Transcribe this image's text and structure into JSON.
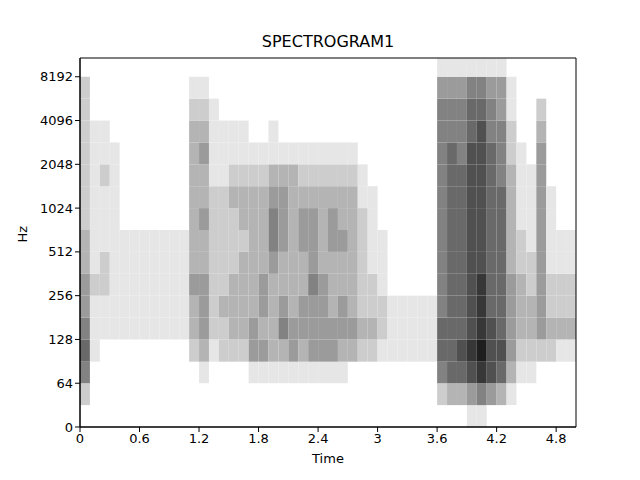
{
  "chart_data": {
    "type": "heatmap",
    "title": "SPECTROGRAM1",
    "x_label": "Time",
    "y_label": "Hz",
    "xlim": [
      0,
      5
    ],
    "xticks": [
      0,
      0.6,
      1.2,
      1.8,
      2.4,
      3,
      3.6,
      4.2,
      4.8
    ],
    "ylim": [
      0,
      11025
    ],
    "yticks": [
      0,
      64,
      128,
      256,
      512,
      1024,
      2048,
      4096,
      8192
    ],
    "log": "y",
    "grid": false,
    "zlim": [
      0,
      9
    ],
    "time_bins": [
      0,
      0.1,
      0.2,
      0.3,
      0.4,
      0.5,
      0.6,
      0.7,
      0.8,
      0.9,
      1,
      1.1,
      1.2,
      1.3,
      1.4,
      1.5,
      1.6,
      1.7,
      1.8,
      1.9,
      2,
      2.1,
      2.2,
      2.3,
      2.4,
      2.5,
      2.6,
      2.7,
      2.8,
      2.9,
      3,
      3.1,
      3.2,
      3.3,
      3.4,
      3.5,
      3.6,
      3.7,
      3.8,
      3.9,
      4,
      4.1,
      4.2,
      4.3,
      4.4,
      4.5,
      4.6,
      4.7,
      4.8,
      4.9,
      5
    ],
    "freq_bins": [
      0,
      32,
      64,
      90,
      128,
      181,
      256,
      362,
      512,
      724,
      1024,
      1448,
      2048,
      2896,
      4096,
      5793,
      8192,
      11025
    ],
    "intensity": [
      [
        0,
        2,
        5,
        6,
        5,
        4,
        4,
        3,
        3,
        2,
        2,
        2,
        2,
        2,
        2,
        2,
        0
      ],
      [
        0,
        0,
        0,
        1,
        1,
        1,
        2,
        1,
        1,
        1,
        1,
        1,
        1,
        1,
        0,
        0,
        0
      ],
      [
        0,
        0,
        0,
        0,
        1,
        1,
        2,
        2,
        1,
        1,
        1,
        2,
        1,
        1,
        0,
        0,
        0
      ],
      [
        0,
        0,
        0,
        0,
        1,
        1,
        1,
        1,
        1,
        1,
        1,
        1,
        1,
        0,
        0,
        0,
        0
      ],
      [
        0,
        0,
        0,
        0,
        1,
        1,
        1,
        1,
        1,
        0,
        0,
        0,
        0,
        0,
        0,
        0,
        0
      ],
      [
        0,
        0,
        0,
        0,
        1,
        1,
        1,
        1,
        1,
        0,
        0,
        0,
        0,
        0,
        0,
        0,
        0
      ],
      [
        0,
        0,
        0,
        0,
        1,
        1,
        1,
        1,
        1,
        0,
        0,
        0,
        0,
        0,
        0,
        0,
        0
      ],
      [
        0,
        0,
        0,
        0,
        1,
        1,
        1,
        1,
        1,
        0,
        0,
        0,
        0,
        0,
        0,
        0,
        0
      ],
      [
        0,
        0,
        0,
        0,
        1,
        1,
        1,
        1,
        1,
        0,
        0,
        0,
        0,
        0,
        0,
        0,
        0
      ],
      [
        0,
        0,
        0,
        0,
        1,
        1,
        1,
        1,
        1,
        0,
        0,
        0,
        0,
        0,
        0,
        0,
        0
      ],
      [
        0,
        0,
        0,
        0,
        1,
        1,
        1,
        1,
        1,
        0,
        0,
        0,
        0,
        0,
        0,
        0,
        0
      ],
      [
        0,
        0,
        0,
        2,
        3,
        3,
        4,
        3,
        3,
        3,
        3,
        3,
        3,
        3,
        2,
        1,
        0
      ],
      [
        0,
        0,
        1,
        3,
        4,
        4,
        4,
        3,
        3,
        4,
        3,
        3,
        4,
        3,
        2,
        1,
        0
      ],
      [
        0,
        0,
        0,
        1,
        2,
        2,
        2,
        2,
        2,
        2,
        2,
        1,
        1,
        1,
        1,
        0,
        0
      ],
      [
        0,
        0,
        0,
        2,
        2,
        3,
        2,
        2,
        2,
        2,
        2,
        1,
        1,
        1,
        0,
        0,
        0
      ],
      [
        0,
        0,
        0,
        2,
        3,
        3,
        3,
        2,
        2,
        2,
        3,
        2,
        1,
        1,
        0,
        0,
        0
      ],
      [
        0,
        0,
        0,
        2,
        3,
        3,
        3,
        3,
        2,
        3,
        3,
        2,
        1,
        1,
        0,
        0,
        0
      ],
      [
        0,
        0,
        1,
        4,
        4,
        3,
        3,
        3,
        3,
        3,
        3,
        2,
        1,
        0,
        0,
        0,
        0
      ],
      [
        0,
        0,
        1,
        4,
        3,
        4,
        4,
        3,
        3,
        3,
        3,
        2,
        1,
        0,
        0,
        0,
        0
      ],
      [
        0,
        0,
        1,
        3,
        3,
        3,
        3,
        4,
        5,
        5,
        4,
        3,
        1,
        1,
        0,
        0,
        0
      ],
      [
        0,
        0,
        1,
        3,
        5,
        4,
        3,
        3,
        4,
        4,
        4,
        3,
        1,
        0,
        0,
        0,
        0
      ],
      [
        0,
        0,
        1,
        4,
        4,
        3,
        3,
        3,
        3,
        3,
        3,
        3,
        1,
        0,
        0,
        0,
        0
      ],
      [
        0,
        0,
        1,
        3,
        4,
        4,
        3,
        3,
        4,
        4,
        3,
        2,
        1,
        0,
        0,
        0,
        0
      ],
      [
        0,
        0,
        1,
        4,
        4,
        4,
        5,
        4,
        4,
        4,
        3,
        2,
        1,
        0,
        0,
        0,
        0
      ],
      [
        0,
        0,
        1,
        4,
        4,
        4,
        4,
        3,
        3,
        3,
        3,
        2,
        1,
        0,
        0,
        0,
        0
      ],
      [
        0,
        0,
        1,
        4,
        4,
        3,
        3,
        3,
        4,
        4,
        3,
        2,
        1,
        0,
        0,
        0,
        0
      ],
      [
        0,
        0,
        1,
        3,
        4,
        4,
        3,
        3,
        4,
        3,
        3,
        2,
        1,
        0,
        0,
        0,
        0
      ],
      [
        0,
        0,
        0,
        3,
        4,
        3,
        3,
        3,
        3,
        3,
        3,
        2,
        1,
        0,
        0,
        0,
        0
      ],
      [
        0,
        0,
        0,
        2,
        3,
        2,
        2,
        2,
        2,
        2,
        1,
        1,
        0,
        0,
        0,
        0,
        0
      ],
      [
        0,
        0,
        0,
        2,
        3,
        2,
        2,
        1,
        1,
        1,
        1,
        0,
        0,
        0,
        0,
        0,
        0
      ],
      [
        0,
        0,
        0,
        1,
        2,
        2,
        1,
        1,
        1,
        0,
        0,
        0,
        0,
        0,
        0,
        0,
        0
      ],
      [
        0,
        0,
        0,
        1,
        1,
        1,
        0,
        0,
        0,
        0,
        0,
        0,
        0,
        0,
        0,
        0,
        0
      ],
      [
        0,
        0,
        0,
        1,
        1,
        1,
        0,
        0,
        0,
        0,
        0,
        0,
        0,
        0,
        0,
        0,
        0
      ],
      [
        0,
        0,
        0,
        1,
        1,
        1,
        0,
        0,
        0,
        0,
        0,
        0,
        0,
        0,
        0,
        0,
        0
      ],
      [
        0,
        0,
        0,
        1,
        1,
        1,
        0,
        0,
        0,
        0,
        0,
        0,
        0,
        0,
        0,
        0,
        0
      ],
      [
        0,
        0,
        0,
        1,
        1,
        1,
        0,
        0,
        0,
        0,
        0,
        0,
        0,
        0,
        0,
        0,
        0
      ],
      [
        0,
        2,
        5,
        6,
        6,
        5,
        5,
        5,
        5,
        5,
        5,
        5,
        5,
        5,
        5,
        4,
        1
      ],
      [
        0,
        3,
        6,
        6,
        6,
        6,
        6,
        6,
        6,
        6,
        6,
        6,
        6,
        5,
        5,
        4,
        1
      ],
      [
        0,
        3,
        6,
        7,
        6,
        6,
        6,
        6,
        6,
        6,
        6,
        6,
        5,
        5,
        5,
        4,
        1
      ],
      [
        1,
        4,
        7,
        8,
        7,
        7,
        7,
        7,
        7,
        7,
        7,
        7,
        7,
        6,
        6,
        5,
        1
      ],
      [
        1,
        5,
        8,
        9,
        8,
        8,
        8,
        7,
        7,
        7,
        7,
        7,
        7,
        7,
        6,
        5,
        1
      ],
      [
        0,
        4,
        7,
        7,
        7,
        6,
        6,
        6,
        6,
        6,
        6,
        6,
        6,
        5,
        5,
        4,
        1
      ],
      [
        0,
        3,
        6,
        7,
        6,
        6,
        6,
        6,
        6,
        6,
        6,
        5,
        5,
        5,
        4,
        4,
        1
      ],
      [
        0,
        1,
        3,
        4,
        4,
        4,
        4,
        3,
        3,
        3,
        3,
        3,
        2,
        2,
        1,
        1,
        0
      ],
      [
        0,
        0,
        1,
        2,
        3,
        3,
        3,
        2,
        2,
        1,
        1,
        1,
        1,
        0,
        0,
        0,
        0
      ],
      [
        0,
        0,
        1,
        2,
        3,
        3,
        2,
        2,
        1,
        1,
        1,
        1,
        0,
        0,
        0,
        0,
        0
      ],
      [
        0,
        0,
        0,
        2,
        4,
        4,
        4,
        4,
        4,
        4,
        4,
        4,
        4,
        3,
        2,
        0,
        0
      ],
      [
        0,
        0,
        0,
        2,
        3,
        2,
        2,
        1,
        1,
        1,
        1,
        0,
        0,
        0,
        0,
        0,
        0
      ],
      [
        0,
        0,
        0,
        1,
        3,
        2,
        2,
        1,
        1,
        0,
        0,
        0,
        0,
        0,
        0,
        0,
        0
      ],
      [
        0,
        0,
        0,
        1,
        3,
        2,
        2,
        1,
        1,
        0,
        0,
        0,
        0,
        0,
        0,
        0,
        0
      ]
    ]
  }
}
